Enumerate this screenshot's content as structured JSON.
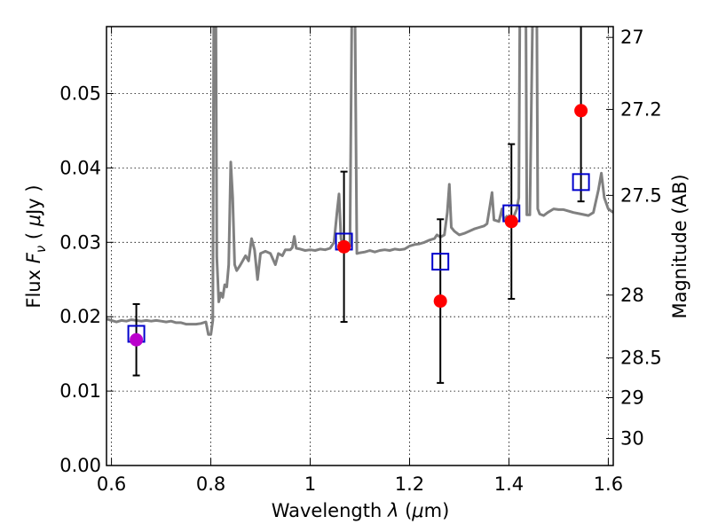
{
  "chart_data": {
    "type": "scatter",
    "xlabel": {
      "pre": "Wavelength  ",
      "sym": "λ",
      "post": " (",
      "mu": "μ",
      "unit": "m)"
    },
    "ylabel": {
      "pre": "Flux  ",
      "sym": "F",
      "sub": "ν",
      "post": "  ( ",
      "mu": "μ",
      "unit": "Jy )"
    },
    "y2label": "Magnitude (AB)",
    "xlim": [
      0.59,
      1.61
    ],
    "ylim": [
      0.0,
      0.059
    ],
    "x_ticks": [
      {
        "value": 0.6,
        "label": "0.6"
      },
      {
        "value": 0.8,
        "label": "0.8"
      },
      {
        "value": 1.0,
        "label": "1"
      },
      {
        "value": 1.2,
        "label": "1.2"
      },
      {
        "value": 1.4,
        "label": "1.4"
      },
      {
        "value": 1.6,
        "label": "1.6"
      }
    ],
    "y_ticks": [
      {
        "value": 0.0,
        "label": "0.00"
      },
      {
        "value": 0.01,
        "label": "0.01"
      },
      {
        "value": 0.02,
        "label": "0.02"
      },
      {
        "value": 0.03,
        "label": "0.03"
      },
      {
        "value": 0.04,
        "label": "0.04"
      },
      {
        "value": 0.05,
        "label": "0.05"
      }
    ],
    "mag_ticks": [
      {
        "value": 27.0,
        "label": "27"
      },
      {
        "value": 27.2,
        "label": "27.2"
      },
      {
        "value": 27.5,
        "label": "27.5"
      },
      {
        "value": 28.0,
        "label": "28"
      },
      {
        "value": 28.5,
        "label": "28.5"
      },
      {
        "value": 29.0,
        "label": "29"
      },
      {
        "value": 30.0,
        "label": "30"
      }
    ],
    "grid": true,
    "colors": {
      "model": "#808080",
      "observed": "#ff0000",
      "observed_first": "#bb00cc",
      "model_band": "#0000cc",
      "errorbar": "#000000"
    },
    "observed": [
      {
        "x": 0.65,
        "y": 0.0169,
        "yerr_low": 0.0048,
        "yerr_high": 0.0048
      },
      {
        "x": 1.068,
        "y": 0.0294,
        "yerr_low": 0.0101,
        "yerr_high": 0.0101
      },
      {
        "x": 1.262,
        "y": 0.0221,
        "yerr_low": 0.011,
        "yerr_high": 0.011
      },
      {
        "x": 1.405,
        "y": 0.0328,
        "yerr_low": 0.0104,
        "yerr_high": 0.0104
      },
      {
        "x": 1.545,
        "y": 0.0477,
        "yerr_low": 0.0122,
        "yerr_high": 0.0122
      }
    ],
    "model_band": [
      {
        "x": 0.65,
        "y": 0.0177
      },
      {
        "x": 1.068,
        "y": 0.0301
      },
      {
        "x": 1.262,
        "y": 0.0274
      },
      {
        "x": 1.405,
        "y": 0.0339
      },
      {
        "x": 1.545,
        "y": 0.0381
      }
    ],
    "model_spectrum": [
      [
        0.59,
        0.0197
      ],
      [
        0.6,
        0.0195
      ],
      [
        0.61,
        0.0193
      ],
      [
        0.62,
        0.0195
      ],
      [
        0.63,
        0.0194
      ],
      [
        0.64,
        0.0196
      ],
      [
        0.65,
        0.0195
      ],
      [
        0.66,
        0.0194
      ],
      [
        0.67,
        0.0195
      ],
      [
        0.68,
        0.0194
      ],
      [
        0.69,
        0.0195
      ],
      [
        0.7,
        0.0194
      ],
      [
        0.71,
        0.0193
      ],
      [
        0.72,
        0.0194
      ],
      [
        0.73,
        0.0192
      ],
      [
        0.74,
        0.0192
      ],
      [
        0.75,
        0.019
      ],
      [
        0.76,
        0.019
      ],
      [
        0.77,
        0.019
      ],
      [
        0.78,
        0.0191
      ],
      [
        0.79,
        0.0193
      ],
      [
        0.795,
        0.0176
      ],
      [
        0.8,
        0.0176
      ],
      [
        0.804,
        0.0195
      ],
      [
        0.806,
        0.062
      ],
      [
        0.81,
        0.062
      ],
      [
        0.812,
        0.028
      ],
      [
        0.816,
        0.022
      ],
      [
        0.82,
        0.0232
      ],
      [
        0.824,
        0.0226
      ],
      [
        0.828,
        0.0243
      ],
      [
        0.832,
        0.024
      ],
      [
        0.836,
        0.027
      ],
      [
        0.84,
        0.0408
      ],
      [
        0.844,
        0.036
      ],
      [
        0.848,
        0.027
      ],
      [
        0.852,
        0.0262
      ],
      [
        0.858,
        0.0268
      ],
      [
        0.864,
        0.0275
      ],
      [
        0.87,
        0.0282
      ],
      [
        0.876,
        0.0275
      ],
      [
        0.882,
        0.0305
      ],
      [
        0.888,
        0.029
      ],
      [
        0.894,
        0.025
      ],
      [
        0.9,
        0.0285
      ],
      [
        0.91,
        0.0288
      ],
      [
        0.92,
        0.0285
      ],
      [
        0.93,
        0.027
      ],
      [
        0.936,
        0.0285
      ],
      [
        0.944,
        0.0282
      ],
      [
        0.95,
        0.029
      ],
      [
        0.96,
        0.029
      ],
      [
        0.964,
        0.0293
      ],
      [
        0.968,
        0.0308
      ],
      [
        0.972,
        0.0292
      ],
      [
        0.98,
        0.0291
      ],
      [
        0.99,
        0.0289
      ],
      [
        1.0,
        0.029
      ],
      [
        1.01,
        0.0289
      ],
      [
        1.02,
        0.0291
      ],
      [
        1.03,
        0.029
      ],
      [
        1.04,
        0.0292
      ],
      [
        1.048,
        0.03
      ],
      [
        1.054,
        0.034
      ],
      [
        1.058,
        0.0365
      ],
      [
        1.062,
        0.0305
      ],
      [
        1.068,
        0.0292
      ],
      [
        1.074,
        0.03
      ],
      [
        1.08,
        0.0295
      ],
      [
        1.084,
        0.062
      ],
      [
        1.09,
        0.062
      ],
      [
        1.094,
        0.0285
      ],
      [
        1.1,
        0.0286
      ],
      [
        1.11,
        0.0287
      ],
      [
        1.12,
        0.0289
      ],
      [
        1.13,
        0.0287
      ],
      [
        1.14,
        0.0289
      ],
      [
        1.15,
        0.029
      ],
      [
        1.16,
        0.0289
      ],
      [
        1.17,
        0.0291
      ],
      [
        1.18,
        0.029
      ],
      [
        1.19,
        0.0291
      ],
      [
        1.2,
        0.0295
      ],
      [
        1.21,
        0.0297
      ],
      [
        1.22,
        0.0298
      ],
      [
        1.23,
        0.03
      ],
      [
        1.24,
        0.0303
      ],
      [
        1.25,
        0.0305
      ],
      [
        1.255,
        0.031
      ],
      [
        1.262,
        0.0307
      ],
      [
        1.27,
        0.031
      ],
      [
        1.276,
        0.034
      ],
      [
        1.28,
        0.0378
      ],
      [
        1.284,
        0.032
      ],
      [
        1.29,
        0.0315
      ],
      [
        1.3,
        0.031
      ],
      [
        1.31,
        0.0312
      ],
      [
        1.32,
        0.0315
      ],
      [
        1.33,
        0.0318
      ],
      [
        1.34,
        0.032
      ],
      [
        1.35,
        0.0322
      ],
      [
        1.356,
        0.0325
      ],
      [
        1.362,
        0.035
      ],
      [
        1.366,
        0.0367
      ],
      [
        1.37,
        0.033
      ],
      [
        1.38,
        0.0328
      ],
      [
        1.386,
        0.0345
      ],
      [
        1.39,
        0.033
      ],
      [
        1.396,
        0.0335
      ],
      [
        1.4,
        0.033
      ],
      [
        1.41,
        0.0335
      ],
      [
        1.416,
        0.0345
      ],
      [
        1.42,
        0.036
      ],
      [
        1.422,
        0.062
      ],
      [
        1.434,
        0.062
      ],
      [
        1.436,
        0.0337
      ],
      [
        1.442,
        0.0337
      ],
      [
        1.448,
        0.062
      ],
      [
        1.456,
        0.062
      ],
      [
        1.458,
        0.0345
      ],
      [
        1.462,
        0.0338
      ],
      [
        1.47,
        0.0336
      ],
      [
        1.478,
        0.034
      ],
      [
        1.49,
        0.0345
      ],
      [
        1.5,
        0.0344
      ],
      [
        1.51,
        0.0344
      ],
      [
        1.52,
        0.0342
      ],
      [
        1.53,
        0.034
      ],
      [
        1.545,
        0.0338
      ],
      [
        1.56,
        0.0336
      ],
      [
        1.57,
        0.034
      ],
      [
        1.58,
        0.037
      ],
      [
        1.586,
        0.0393
      ],
      [
        1.592,
        0.036
      ],
      [
        1.6,
        0.0345
      ],
      [
        1.61,
        0.034
      ]
    ]
  }
}
